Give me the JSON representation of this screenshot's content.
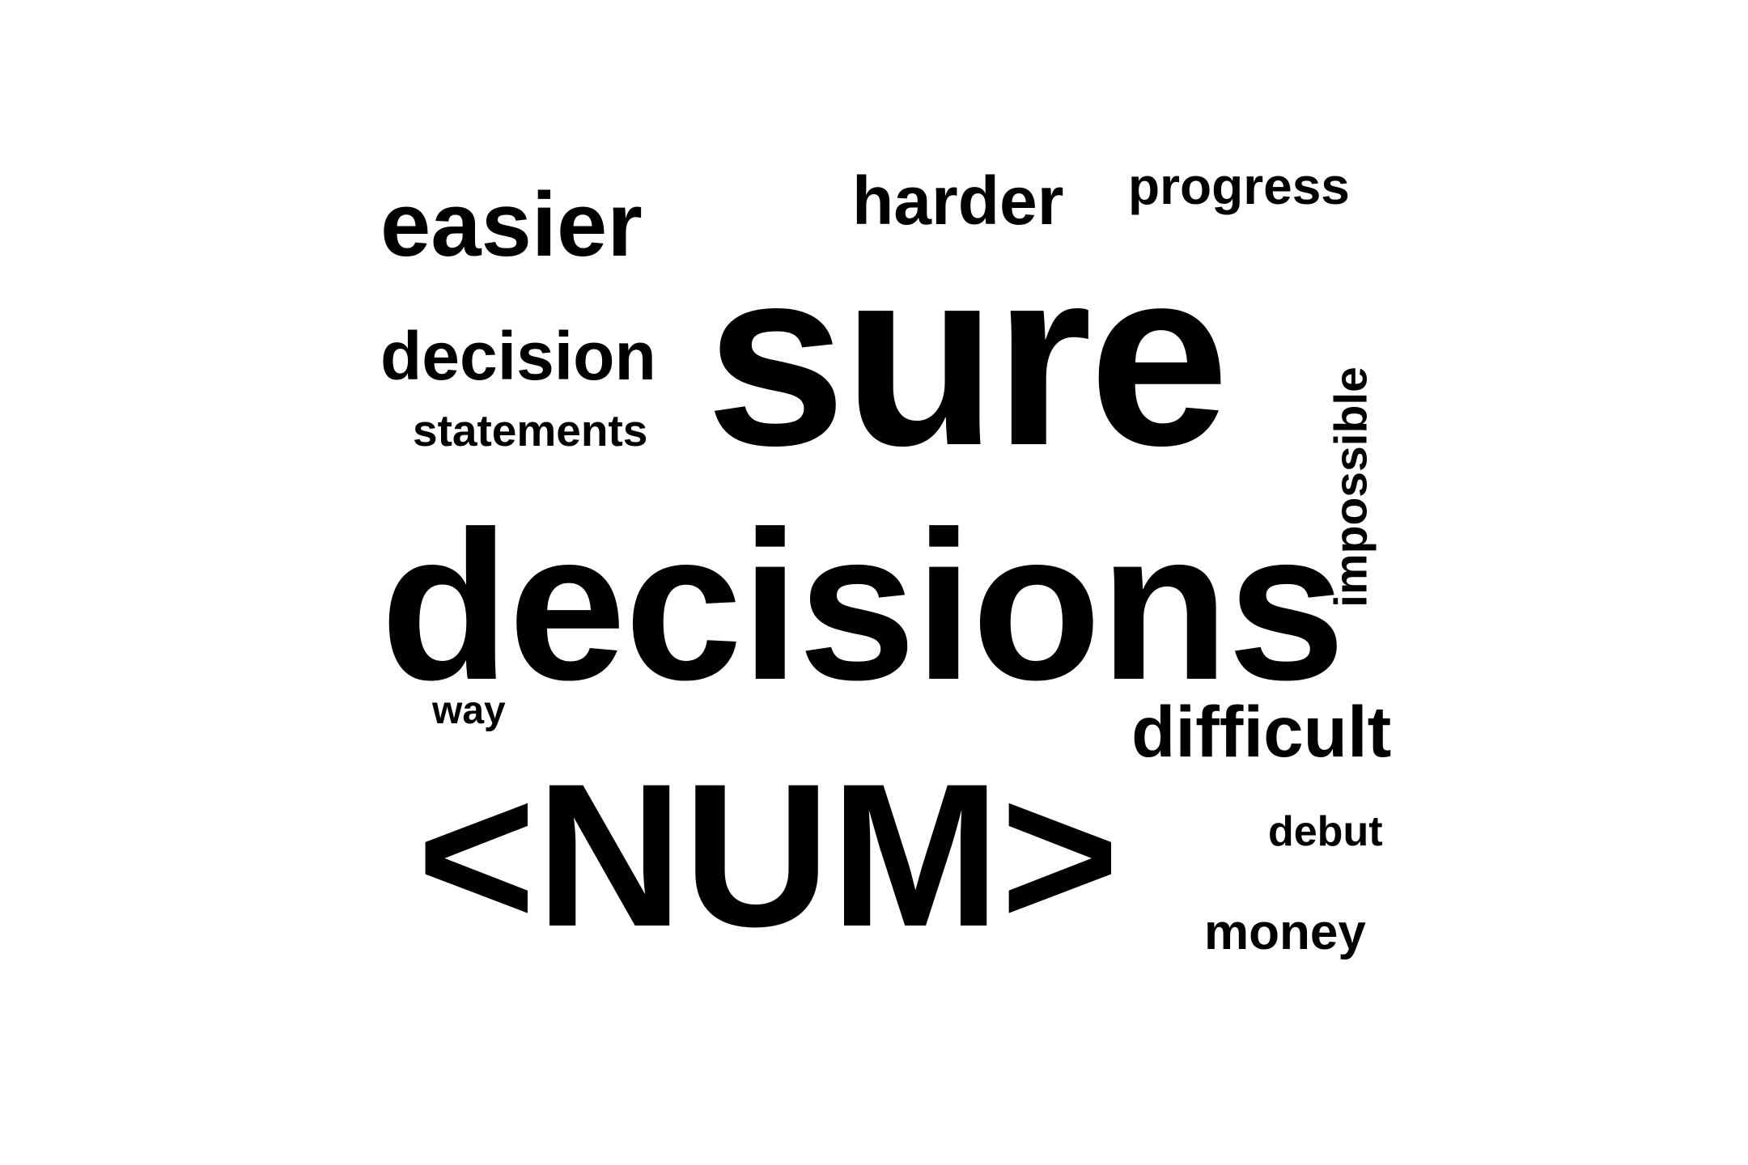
{
  "word_cloud": {
    "words": [
      {
        "id": "easier",
        "text": "easier"
      },
      {
        "id": "harder",
        "text": "harder"
      },
      {
        "id": "progress",
        "text": "progress"
      },
      {
        "id": "sure",
        "text": "sure"
      },
      {
        "id": "decision",
        "text": "decision"
      },
      {
        "id": "statements",
        "text": "statements"
      },
      {
        "id": "impossible",
        "text": "impossible"
      },
      {
        "id": "decisions",
        "text": "decisions"
      },
      {
        "id": "way",
        "text": "way"
      },
      {
        "id": "difficult",
        "text": "difficult"
      },
      {
        "id": "num",
        "text": "<NUM>"
      },
      {
        "id": "debut",
        "text": "debut"
      },
      {
        "id": "money",
        "text": "money"
      }
    ],
    "text_color": "#000000",
    "background_color": "#ffffff"
  }
}
